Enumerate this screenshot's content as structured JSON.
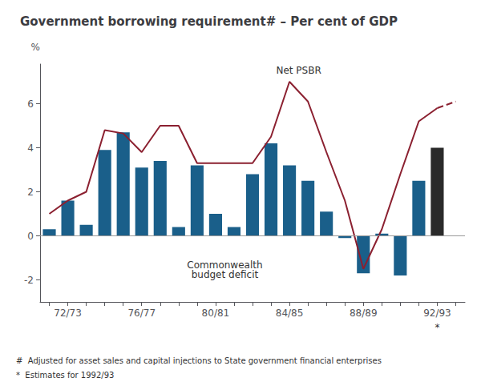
{
  "chart_data": {
    "type": "bar",
    "title": "Government borrowing requirement# – Per cent of GDP",
    "y_label": "%",
    "categories": [
      null,
      "72/73",
      null,
      null,
      null,
      "76/77",
      null,
      null,
      null,
      "80/81",
      null,
      null,
      null,
      "84/85",
      null,
      null,
      null,
      "88/89",
      null,
      null,
      null,
      "92/93",
      null
    ],
    "series": [
      {
        "type": "bar",
        "values": [
          0.3,
          1.6,
          0.5,
          3.9,
          4.7,
          3.1,
          3.4,
          0.4,
          3.2,
          1.0,
          0.4,
          2.8,
          4.2,
          3.2,
          2.5,
          1.1,
          -0.1,
          -1.7,
          0.1,
          -1.8,
          2.5,
          4.0,
          null
        ],
        "colors": [
          "#1a5f8a",
          "#1a5f8a",
          "#1a5f8a",
          "#1a5f8a",
          "#1a5f8a",
          "#1a5f8a",
          "#1a5f8a",
          "#1a5f8a",
          "#1a5f8a",
          "#1a5f8a",
          "#1a5f8a",
          "#1a5f8a",
          "#1a5f8a",
          "#1a5f8a",
          "#1a5f8a",
          "#1a5f8a",
          "#1a5f8a",
          "#1a5f8a",
          "#1a5f8a",
          "#1a5f8a",
          "#1a5f8a",
          "#2a2a2a"
        ]
      },
      {
        "type": "line",
        "color": "#8b2030",
        "line_style": "solid",
        "values": [
          1.0,
          1.6,
          2.0,
          4.8,
          4.65,
          3.8,
          5.0,
          5.0,
          3.3,
          3.3,
          3.3,
          3.3,
          4.5,
          7.0,
          6.1,
          3.8,
          1.6,
          -1.5,
          0.3,
          2.8,
          5.2,
          5.8,
          null
        ]
      },
      {
        "type": "line",
        "color": "#8b2030",
        "line_style": "dashed",
        "values": [
          null,
          null,
          null,
          null,
          null,
          null,
          null,
          null,
          null,
          null,
          null,
          null,
          null,
          null,
          null,
          null,
          null,
          null,
          null,
          null,
          null,
          5.8,
          6.1
        ]
      }
    ],
    "ylim": [
      -3.0,
      7.8
    ],
    "yticks": [
      -2,
      0,
      2,
      4,
      6
    ],
    "grid": false,
    "annotations": [
      {
        "text": "Net PSBR",
        "x": 13.5,
        "y": 7.3
      },
      {
        "text": "Commonwealth\nbudget deficit",
        "x": 9.5,
        "y": -1.1
      },
      {
        "text": "*",
        "x": 21
      }
    ],
    "notes": [
      "#  Adjusted for asset sales and capital injections to State government financial enterprises",
      "*  Estimates for 1992/93"
    ]
  }
}
